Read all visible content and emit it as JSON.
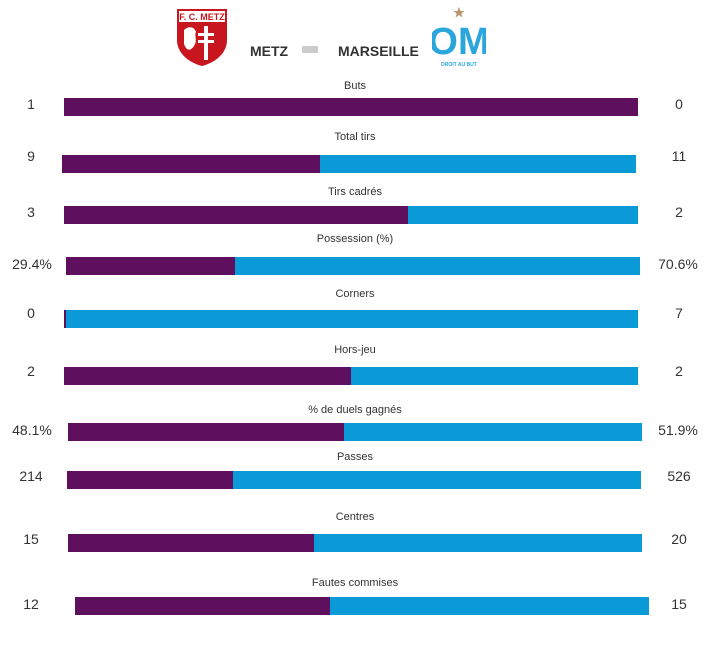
{
  "colors": {
    "home": "#5e0f5e",
    "away": "#0a9ad8",
    "metz_red": "#c7161d",
    "om_blue": "#2aa6dd",
    "om_star": "#b8956b"
  },
  "header": {
    "home_team": "METZ",
    "away_team": "MARSEILLE",
    "home_crest_text": "F. C. METZ",
    "away_crest_text": "DROIT AU BUT",
    "away_crest_letters": "OM"
  },
  "stats": [
    {
      "label": "Buts",
      "home": "1",
      "away": "0",
      "home_share": 1.0
    },
    {
      "label": "Total tirs",
      "home": "9",
      "away": "11",
      "home_share": 0.45
    },
    {
      "label": "Tirs cadrés",
      "home": "3",
      "away": "2",
      "home_share": 0.6
    },
    {
      "label": "Possession (%)",
      "home": "29.4%",
      "away": "70.6%",
      "home_share": 0.294
    },
    {
      "label": "Corners",
      "home": "0",
      "away": "7",
      "home_share": 0.0
    },
    {
      "label": "Hors-jeu",
      "home": "2",
      "away": "2",
      "home_share": 0.5
    },
    {
      "label": "% de duels gagnés",
      "home": "48.1%",
      "away": "51.9%",
      "home_share": 0.481
    },
    {
      "label": "Passes",
      "home": "214",
      "away": "526",
      "home_share": 0.289
    },
    {
      "label": "Centres",
      "home": "15",
      "away": "20",
      "home_share": 0.4286
    },
    {
      "label": "Fautes commises",
      "home": "12",
      "away": "15",
      "home_share": 0.4444
    }
  ]
}
